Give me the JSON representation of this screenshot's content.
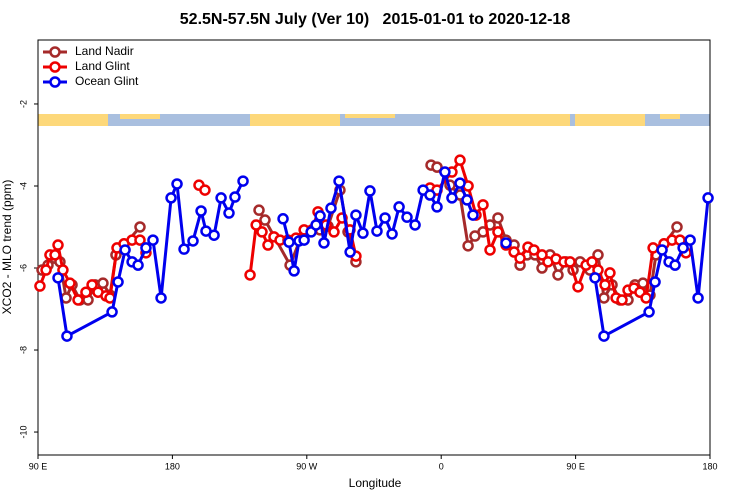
{
  "chart_data": {
    "type": "line",
    "title": "52.5N-57.5N July (Ver 10)   2015-01-01 to 2020-12-18",
    "xlabel": "Longitude",
    "ylabel": "XCO2 - MLO trend (ppm)",
    "xlim": [
      90,
      540
    ],
    "ylim": [
      -10.56,
      -0.44
    ],
    "xticks": [
      {
        "value": 90,
        "label": "90 E"
      },
      180,
      {
        "value": 270,
        "label": "90 W"
      },
      {
        "value": 360,
        "label": "0"
      },
      {
        "value": 450,
        "label": "90 E"
      },
      {
        "value": 540,
        "label": "180"
      }
    ],
    "yticks": [
      -2,
      -4,
      -6,
      -8,
      -10
    ],
    "legend": "upper left",
    "series": [
      {
        "name": "Land Nadir",
        "color": "#a52a2a",
        "x": [
          92.7,
          96.7,
          101.4,
          104.7,
          108.8,
          112.8,
          118.1,
          123.5,
          128.2,
          133.5,
          138.2,
          142.2,
          158.3,
          null,
          238.0,
          242.0,
          258.8,
          265.4,
          278.8,
          284.2,
          292.2,
          297.6,
          302.9,
          null,
          353.2,
          357.2,
          365.9,
          372.6,
          378.0,
          382.6,
          388.0,
          392.7,
          398.0,
          403.4,
          408.8,
          412.8,
          417.5,
          422.8,
          427.5,
          432.9,
          438.2,
          443.6,
          448.3,
          453.0,
          459.6,
          465.0,
          469.0,
          474.4,
          479.7,
          485.1,
          489.8,
          495.1,
          499.8,
          503.8,
          517.9
        ],
        "values": [
          -6.05,
          -5.93,
          -5.76,
          -5.85,
          -6.73,
          -6.41,
          -6.78,
          -6.78,
          -6.41,
          -6.37,
          -6.66,
          -5.68,
          -5.0,
          null,
          -4.59,
          -4.83,
          -5.93,
          -5.32,
          -5.07,
          -4.98,
          -4.1,
          -5.12,
          -5.85,
          null,
          -3.49,
          -3.54,
          -3.98,
          -4.22,
          -5.46,
          -5.22,
          -5.12,
          -4.95,
          -4.78,
          -5.32,
          -5.44,
          -5.93,
          -5.68,
          -5.68,
          -6.0,
          -5.68,
          -6.17,
          -5.85,
          -6.05,
          -5.85,
          -6.05,
          -5.68,
          -6.73,
          -6.41,
          -6.78,
          -6.78,
          -6.41,
          -6.37,
          -6.66,
          -5.68,
          -5.0
        ]
      },
      {
        "name": "Land Glint",
        "color": "#ee0000",
        "x": [
          91.3,
          95.4,
          98.0,
          101.4,
          103.4,
          106.7,
          111.4,
          116.8,
          122.1,
          126.2,
          130.2,
          135.5,
          138.2,
          142.9,
          147.6,
          153.0,
          158.3,
          162.3,
          null,
          197.8,
          201.8,
          null,
          232.0,
          236.1,
          240.0,
          244.0,
          248.0,
          252.1,
          257.4,
          262.8,
          268.2,
          273.5,
          277.5,
          282.9,
          288.2,
          293.6,
          298.9,
          302.9,
          null,
          352.5,
          357.2,
          367.2,
          372.6,
          378.0,
          383.3,
          388.0,
          392.7,
          398.0,
          403.4,
          408.8,
          412.8,
          418.1,
          422.1,
          427.5,
          431.5,
          436.9,
          442.2,
          446.3,
          451.6,
          457.0,
          461.0,
          465.0,
          469.7,
          473.0,
          477.1,
          481.1,
          485.1,
          489.1,
          493.1,
          497.2,
          501.9,
          509.2,
          514.6,
          519.9,
          523.9
        ],
        "values": [
          -6.44,
          -6.05,
          -5.68,
          -5.68,
          -5.44,
          -6.05,
          -6.37,
          -6.78,
          -6.59,
          -6.41,
          -6.59,
          -6.68,
          -6.73,
          -5.51,
          -5.41,
          -5.32,
          -5.32,
          -5.63,
          null,
          -3.98,
          -4.1,
          null,
          -6.17,
          -4.95,
          -5.12,
          -5.44,
          -5.24,
          -5.32,
          -5.32,
          -5.27,
          -5.07,
          -5.07,
          -4.63,
          -4.95,
          -5.12,
          -4.78,
          -5.07,
          -5.71,
          null,
          -4.05,
          -4.1,
          -3.66,
          -3.37,
          -4.0,
          -4.71,
          -4.46,
          -5.56,
          -5.12,
          -5.44,
          -5.61,
          -5.76,
          -5.49,
          -5.56,
          -5.68,
          -5.85,
          -5.78,
          -5.85,
          -5.85,
          -6.46,
          -5.93,
          -5.85,
          -6.05,
          -6.41,
          -6.12,
          -6.73,
          -6.78,
          -6.54,
          -6.49,
          -6.59,
          -6.73,
          -5.51,
          -5.41,
          -5.32,
          -5.32,
          -5.63
        ]
      },
      {
        "name": "Ocean Glint",
        "color": "#0000ee",
        "x": [
          103.4,
          109.4,
          139.6,
          143.6,
          148.3,
          153.0,
          157.0,
          162.3,
          167.0,
          172.4,
          179.1,
          183.1,
          187.8,
          193.8,
          199.2,
          202.5,
          207.9,
          212.6,
          217.9,
          221.9,
          227.3,
          null,
          254.1,
          258.1,
          261.5,
          264.8,
          268.2,
          272.9,
          276.2,
          278.9,
          281.5,
          286.2,
          291.6,
          299.0,
          302.9,
          307.6,
          312.3,
          317.0,
          322.4,
          327.1,
          331.8,
          337.1,
          342.5,
          347.9,
          352.5,
          357.2,
          362.5,
          367.2,
          372.6,
          377.3,
          381.3,
          null,
          403.4,
          null,
          463.0,
          469.0,
          499.2,
          503.2,
          507.9,
          512.6,
          516.6,
          522.0,
          526.7,
          532.0,
          538.7
        ],
        "values": [
          -6.24,
          -7.66,
          -7.07,
          -6.34,
          -5.56,
          -5.85,
          -5.93,
          -5.51,
          -5.32,
          -6.73,
          -4.29,
          -3.95,
          -5.54,
          -5.34,
          -4.61,
          -5.1,
          -5.2,
          -4.29,
          -4.66,
          -4.27,
          -3.88,
          null,
          -4.8,
          -5.37,
          -6.07,
          -5.34,
          -5.32,
          -5.12,
          -4.95,
          -4.73,
          -5.39,
          -4.54,
          -3.88,
          -5.61,
          -4.71,
          -5.15,
          -4.12,
          -5.1,
          -4.78,
          -5.17,
          -4.51,
          -4.76,
          -4.95,
          -4.1,
          -4.22,
          -4.51,
          -3.66,
          -4.29,
          -3.93,
          -4.34,
          -4.71,
          null,
          -5.39,
          null,
          -6.24,
          -7.66,
          -7.07,
          -6.34,
          -5.56,
          -5.85,
          -5.93,
          -5.51,
          -5.32,
          -6.73,
          -4.29
        ]
      }
    ]
  }
}
